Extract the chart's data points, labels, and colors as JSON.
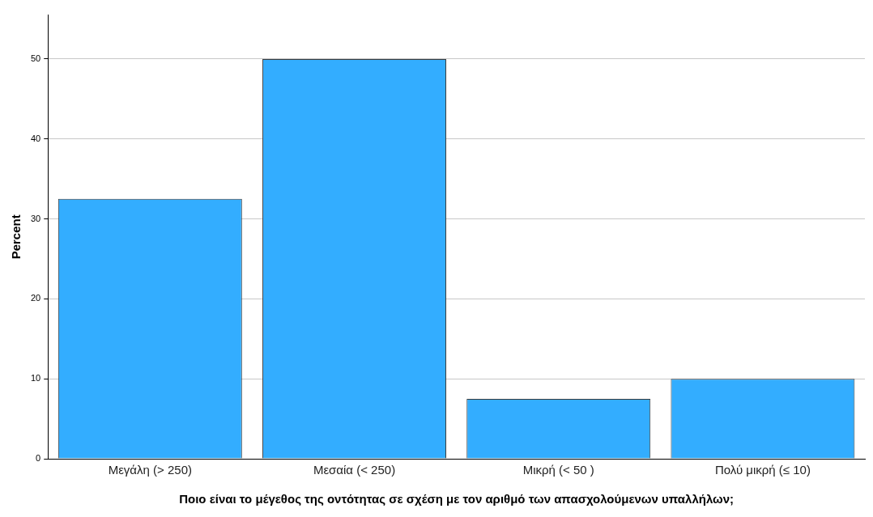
{
  "chart_data": {
    "type": "bar",
    "xlabel": "Ποιο είναι το μέγεθος της οντότητας σε σχέση με τον αριθμό των απασχολούμενων υπαλλήλων;",
    "ylabel": "Percent",
    "categories": [
      "Μεγάλη (> 250)",
      "Μεσαία (< 250)",
      "Μικρή (< 50 )",
      "Πολύ μικρή (≤ 10)"
    ],
    "values": [
      32.5,
      50,
      7.5,
      10
    ],
    "color": "#33adff",
    "ylim": [
      0,
      55.5
    ],
    "yticks": [
      0,
      10,
      20,
      30,
      40,
      50
    ],
    "grid": "y"
  }
}
